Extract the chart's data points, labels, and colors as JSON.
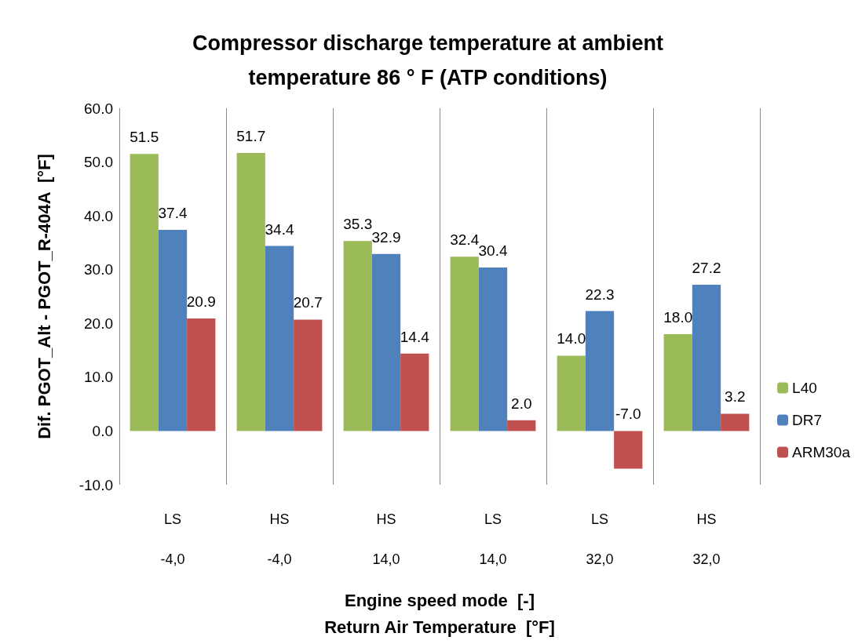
{
  "chart_data": {
    "type": "bar",
    "title": "Compressor discharge temperature at ambient\ntemperature 86 ° F (ATP conditions)",
    "categories": [
      "LS",
      "HS",
      "HS",
      "LS",
      "LS",
      "HS"
    ],
    "annotations": [
      "-4,0",
      "-4,0",
      "14,0",
      "14,0",
      "32,0",
      "32,0"
    ],
    "series": [
      {
        "name": "L40",
        "color": "#9bbb59",
        "values": [
          51.5,
          51.7,
          35.3,
          32.4,
          14.0,
          18.0
        ],
        "value_labels": [
          "51.5",
          "51.7",
          "35.3",
          "32.4",
          "14.0",
          "18.0"
        ]
      },
      {
        "name": "DR7",
        "color": "#4f81bd",
        "values": [
          37.4,
          34.4,
          32.9,
          30.4,
          22.3,
          27.2
        ],
        "value_labels": [
          "37.4",
          "34.4",
          "32.9",
          "30.4",
          "22.3",
          "27.2"
        ]
      },
      {
        "name": "ARM30a",
        "color": "#c0504d",
        "values": [
          20.9,
          20.7,
          14.4,
          2.0,
          -7.0,
          3.2
        ],
        "value_labels": [
          "20.9",
          "20.7",
          "14.4",
          "2.0",
          "-7.0",
          "3.2"
        ]
      }
    ],
    "ylim": [
      -10,
      60
    ],
    "yticks": [
      {
        "value": -10,
        "label": "-10.0"
      },
      {
        "value": 0,
        "label": "0.0"
      },
      {
        "value": 10,
        "label": "10.0"
      },
      {
        "value": 20,
        "label": "20.0"
      },
      {
        "value": 30,
        "label": "30.0"
      },
      {
        "value": 40,
        "label": "40.0"
      },
      {
        "value": 50,
        "label": "50.0"
      },
      {
        "value": 60,
        "label": "60.0"
      }
    ],
    "xlabel": "Engine speed mode  [-]\nReturn Air Temperature  [°F]",
    "ylabel": "Dif. PGOT_Alt - PGOT_R-404A  [°F]",
    "grid": "x",
    "legend": "right"
  }
}
